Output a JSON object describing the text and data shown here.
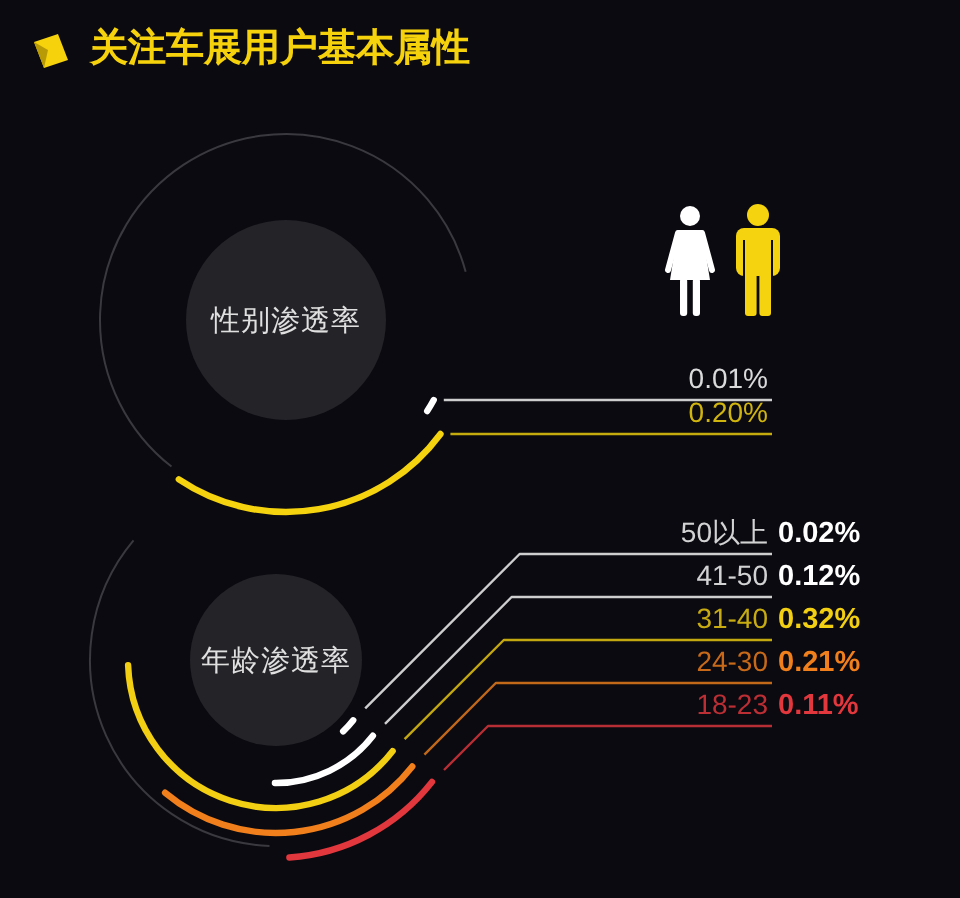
{
  "chart_data": [
    {
      "type": "other",
      "title": "关注车展用户基本属性"
    },
    {
      "type": "other",
      "title": "性别渗透率",
      "categories": [
        null,
        null
      ],
      "values": [
        0.01,
        0.2
      ],
      "colors": [
        "#ffffff",
        "#f5d30f"
      ],
      "value_labels": [
        "0.01%",
        "0.20%"
      ]
    },
    {
      "type": "other",
      "title": "年龄渗透率",
      "categories": [
        "50以上",
        "41-50",
        "31-40",
        "24-30",
        "18-23"
      ],
      "values": [
        0.02,
        0.12,
        0.32,
        0.21,
        0.11
      ],
      "colors": [
        "#ffffff",
        "#ffffff",
        "#f2cf12",
        "#f07f1c",
        "#e2373d"
      ],
      "value_labels": [
        "0.02%",
        "0.12%",
        "0.32%",
        "0.21%",
        "0.11%"
      ]
    }
  ]
}
